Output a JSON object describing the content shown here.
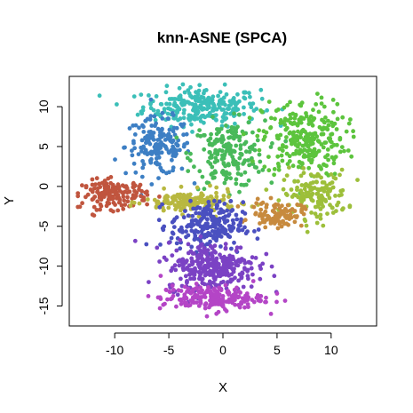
{
  "chart_data": {
    "type": "scatter",
    "title": "knn-ASNE (SPCA)",
    "xlabel": "X",
    "ylabel": "Y",
    "xlim": [
      -14.2,
      14.2
    ],
    "ylim": [
      -17.5,
      13.8
    ],
    "xticks": [
      -10,
      -5,
      0,
      5,
      10
    ],
    "yticks": [
      -15,
      -10,
      -5,
      0,
      5,
      10
    ],
    "grid": false,
    "legend": "none",
    "point_size_note": "small filled circles, rainbow colored",
    "clusters": [
      {
        "name": "top-cyan",
        "center": [
          -2,
          10
        ],
        "spread": [
          4.5,
          2.0
        ],
        "n": 260,
        "color": "#3bbfb8"
      },
      {
        "name": "left-blue",
        "center": [
          -6,
          5
        ],
        "spread": [
          2.5,
          3.0
        ],
        "n": 170,
        "color": "#3d7fc4"
      },
      {
        "name": "center-green",
        "center": [
          0.5,
          4
        ],
        "spread": [
          2.8,
          3.5
        ],
        "n": 200,
        "color": "#49b95a"
      },
      {
        "name": "right-green",
        "center": [
          7.5,
          6
        ],
        "spread": [
          3.2,
          4.0
        ],
        "n": 260,
        "color": "#5cc43d"
      },
      {
        "name": "right-olive",
        "center": [
          8.5,
          -1
        ],
        "spread": [
          2.5,
          2.5
        ],
        "n": 150,
        "color": "#9dbf3a"
      },
      {
        "name": "band-left-red",
        "center": [
          -10,
          -1
        ],
        "spread": [
          2.5,
          1.5
        ],
        "n": 160,
        "color": "#c0553e"
      },
      {
        "name": "band-mid-yellow",
        "center": [
          -3,
          -2
        ],
        "spread": [
          3.5,
          1.2
        ],
        "n": 160,
        "color": "#b8b840"
      },
      {
        "name": "band-right-orange",
        "center": [
          5,
          -3.5
        ],
        "spread": [
          2.0,
          1.3
        ],
        "n": 100,
        "color": "#c78a3e"
      },
      {
        "name": "center-blue",
        "center": [
          -1.5,
          -5
        ],
        "spread": [
          2.8,
          2.5
        ],
        "n": 230,
        "color": "#4a50c0"
      },
      {
        "name": "lower-violet",
        "center": [
          -1,
          -10
        ],
        "spread": [
          3.5,
          2.5
        ],
        "n": 300,
        "color": "#7b42c4"
      },
      {
        "name": "bottom-magenta",
        "center": [
          -1,
          -14
        ],
        "spread": [
          4.0,
          1.3
        ],
        "n": 200,
        "color": "#b445c6"
      }
    ]
  }
}
